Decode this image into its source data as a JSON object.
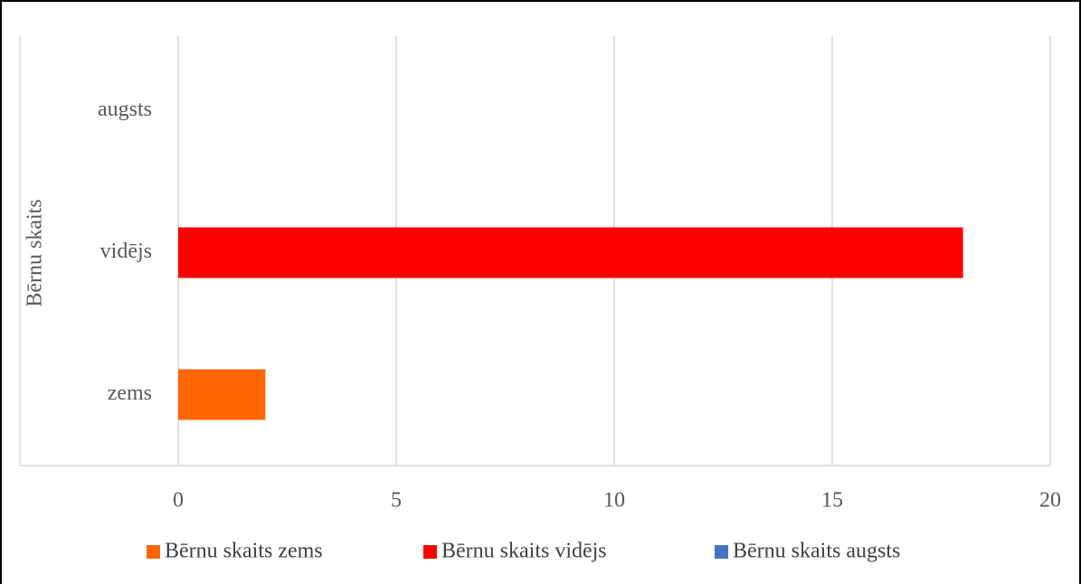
{
  "chart_data": {
    "type": "bar",
    "orientation": "horizontal",
    "y_label": "Bērnu skaits",
    "categories": [
      "zems",
      "vidējs",
      "augsts"
    ],
    "series": [
      {
        "name": "Bērnu skaits zems",
        "color": "#ff6600",
        "values": [
          2,
          null,
          null
        ]
      },
      {
        "name": "Bērnu skaits vidējs",
        "color": "#ff0000",
        "values": [
          null,
          18,
          null
        ]
      },
      {
        "name": "Bērnu skaits augsts",
        "color": "#4472c4",
        "values": [
          null,
          null,
          0
        ]
      }
    ],
    "xlim": [
      0,
      20
    ],
    "xticks": [
      0,
      5,
      10,
      15,
      20
    ],
    "grid": true,
    "legend": "bottom"
  }
}
